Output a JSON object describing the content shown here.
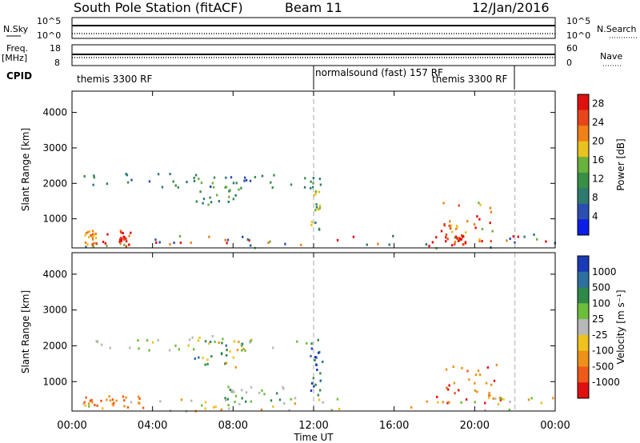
{
  "header": {
    "station": "South Pole Station (fitACF)",
    "beam": "Beam 11",
    "date": "12/Jan/2016"
  },
  "summary": {
    "nsky_label": "N.Sky",
    "nsky_ticks": [
      "10^5",
      "10^0"
    ],
    "nsearch_label": "N.Search",
    "nsearch_ticks": [
      "10^5",
      "10^0"
    ],
    "freq_label": "Freq.",
    "freq_unit": "[MHz]",
    "freq_ticks": [
      "18",
      "8"
    ],
    "nave_label": "Nave",
    "nave_ticks": [
      "60",
      "0"
    ],
    "cpid_label": "CPID",
    "cpid_segments": [
      {
        "label": "themis 3300 RF",
        "start": 0,
        "end": 12
      },
      {
        "label": "normalsound (fast) 157 RF",
        "start": 12,
        "end": 22
      },
      {
        "label": "themis 3300 RF",
        "start": 22,
        "end": 24
      }
    ]
  },
  "chart_data": [
    {
      "type": "heatmap",
      "name": "power",
      "ylabel": "Slant Range [km]",
      "yticks": [
        1000,
        2000,
        3000,
        4000
      ],
      "ylim": [
        180,
        4600
      ],
      "xlim": [
        0,
        24
      ],
      "colorbar_label": "Power [dB]",
      "colorbar_ticks": [
        4,
        8,
        12,
        16,
        20,
        24,
        28
      ],
      "colorbar_range": [
        0,
        30
      ],
      "colors": [
        "#0b1de8",
        "#2b4fb0",
        "#2e7a70",
        "#3a8f47",
        "#69b23b",
        "#e8c21e",
        "#f08018",
        "#e8461a",
        "#e01010"
      ],
      "scatter_regions": [
        {
          "t0": 0.5,
          "t1": 11.8,
          "r0": 1900,
          "r1": 2300,
          "levels": [
            1,
            2,
            3
          ]
        },
        {
          "t0": 6.0,
          "t1": 8.5,
          "r0": 1400,
          "r1": 2200,
          "levels": [
            2,
            3,
            4
          ]
        },
        {
          "t0": 11.8,
          "t1": 12.4,
          "r0": 600,
          "r1": 2200,
          "levels": [
            2,
            3,
            4,
            5
          ]
        },
        {
          "t0": 18.0,
          "t1": 21.3,
          "r0": 400,
          "r1": 1500,
          "levels": [
            4,
            5,
            6,
            7,
            8
          ]
        },
        {
          "t0": 0.0,
          "t1": 24.0,
          "r0": 200,
          "r1": 600,
          "levels": [
            1,
            2,
            4,
            6,
            8
          ]
        },
        {
          "t0": 2.3,
          "t1": 2.9,
          "r0": 250,
          "r1": 700,
          "levels": [
            6,
            7,
            8
          ]
        },
        {
          "t0": 0.6,
          "t1": 1.2,
          "r0": 250,
          "r1": 700,
          "levels": [
            5,
            6,
            7
          ]
        },
        {
          "t0": 18.5,
          "t1": 19.5,
          "r0": 250,
          "r1": 600,
          "levels": [
            7,
            8
          ]
        }
      ]
    },
    {
      "type": "heatmap",
      "name": "velocity",
      "ylabel": "Slant Range [km]",
      "xlabel": "Time UT",
      "yticks": [
        1000,
        2000,
        3000,
        4000
      ],
      "ylim": [
        180,
        4600
      ],
      "xlim": [
        0,
        24
      ],
      "xticks": [
        "00:00",
        "04:00",
        "08:00",
        "12:00",
        "16:00",
        "20:00",
        "00:00"
      ],
      "colorbar_label": "Velocity [m s⁻¹]",
      "colorbar_ticks": [
        "1000",
        "500",
        "100",
        "25",
        "-25",
        "-100",
        "-500",
        "-1000"
      ],
      "colors": [
        "#1a3bb8",
        "#2c6fa0",
        "#2f8a4a",
        "#6cbf3a",
        "#b8b8b8",
        "#f0c21e",
        "#f09018",
        "#f05a18",
        "#e01010"
      ],
      "scatter_regions": [
        {
          "t0": 0.5,
          "t1": 11.8,
          "r0": 1900,
          "r1": 2300,
          "levels": [
            3,
            4,
            5
          ]
        },
        {
          "t0": 6.0,
          "t1": 8.5,
          "r0": 1400,
          "r1": 2200,
          "levels": [
            1,
            2,
            5,
            6
          ]
        },
        {
          "t0": 11.8,
          "t1": 12.4,
          "r0": 600,
          "r1": 2200,
          "levels": [
            0,
            1,
            2
          ]
        },
        {
          "t0": 18.0,
          "t1": 21.3,
          "r0": 400,
          "r1": 1500,
          "levels": [
            6,
            7,
            8
          ]
        },
        {
          "t0": 0.0,
          "t1": 24.0,
          "r0": 200,
          "r1": 600,
          "levels": [
            4,
            5,
            6,
            3
          ]
        },
        {
          "t0": 0.5,
          "t1": 3.5,
          "r0": 300,
          "r1": 650,
          "levels": [
            6,
            7
          ]
        },
        {
          "t0": 7.5,
          "t1": 10.5,
          "r0": 350,
          "r1": 900,
          "levels": [
            2,
            3,
            4
          ]
        }
      ]
    }
  ]
}
